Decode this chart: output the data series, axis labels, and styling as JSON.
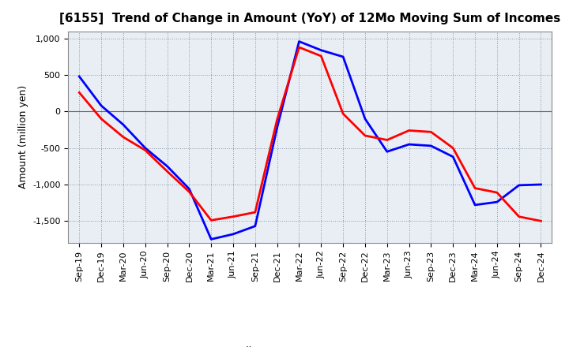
{
  "title": "[6155]  Trend of Change in Amount (YoY) of 12Mo Moving Sum of Incomes",
  "ylabel": "Amount (million yen)",
  "x_labels": [
    "Sep-19",
    "Dec-19",
    "Mar-20",
    "Jun-20",
    "Sep-20",
    "Dec-20",
    "Mar-21",
    "Jun-21",
    "Sep-21",
    "Dec-21",
    "Mar-22",
    "Jun-22",
    "Sep-22",
    "Dec-22",
    "Mar-23",
    "Jun-23",
    "Sep-23",
    "Dec-23",
    "Mar-24",
    "Jun-24",
    "Sep-24",
    "Dec-24"
  ],
  "ordinary_income": [
    480,
    80,
    -180,
    -500,
    -750,
    -1060,
    -1750,
    -1680,
    -1570,
    -220,
    960,
    840,
    750,
    -100,
    -550,
    -450,
    -470,
    -620,
    -1280,
    -1240,
    -1010,
    -1000
  ],
  "net_income": [
    260,
    -100,
    -350,
    -530,
    -820,
    -1100,
    -1490,
    -1440,
    -1380,
    -110,
    880,
    760,
    -30,
    -330,
    -390,
    -260,
    -280,
    -500,
    -1050,
    -1110,
    -1440,
    -1500
  ],
  "ordinary_income_color": "#0000FF",
  "net_income_color": "#FF0000",
  "ylim": [
    -1800,
    1100
  ],
  "yticks": [
    -1500,
    -1000,
    -500,
    0,
    500,
    1000
  ],
  "ytick_labels": [
    "-1,500",
    "-1,000",
    "-500",
    "0",
    "500",
    "1,000"
  ],
  "background_color": "#ffffff",
  "plot_bg_color": "#e8eef4",
  "grid_color": "#8899aa",
  "line_width": 2.0,
  "title_fontsize": 11,
  "legend_fontsize": 9,
  "tick_fontsize": 8,
  "ylabel_fontsize": 9
}
